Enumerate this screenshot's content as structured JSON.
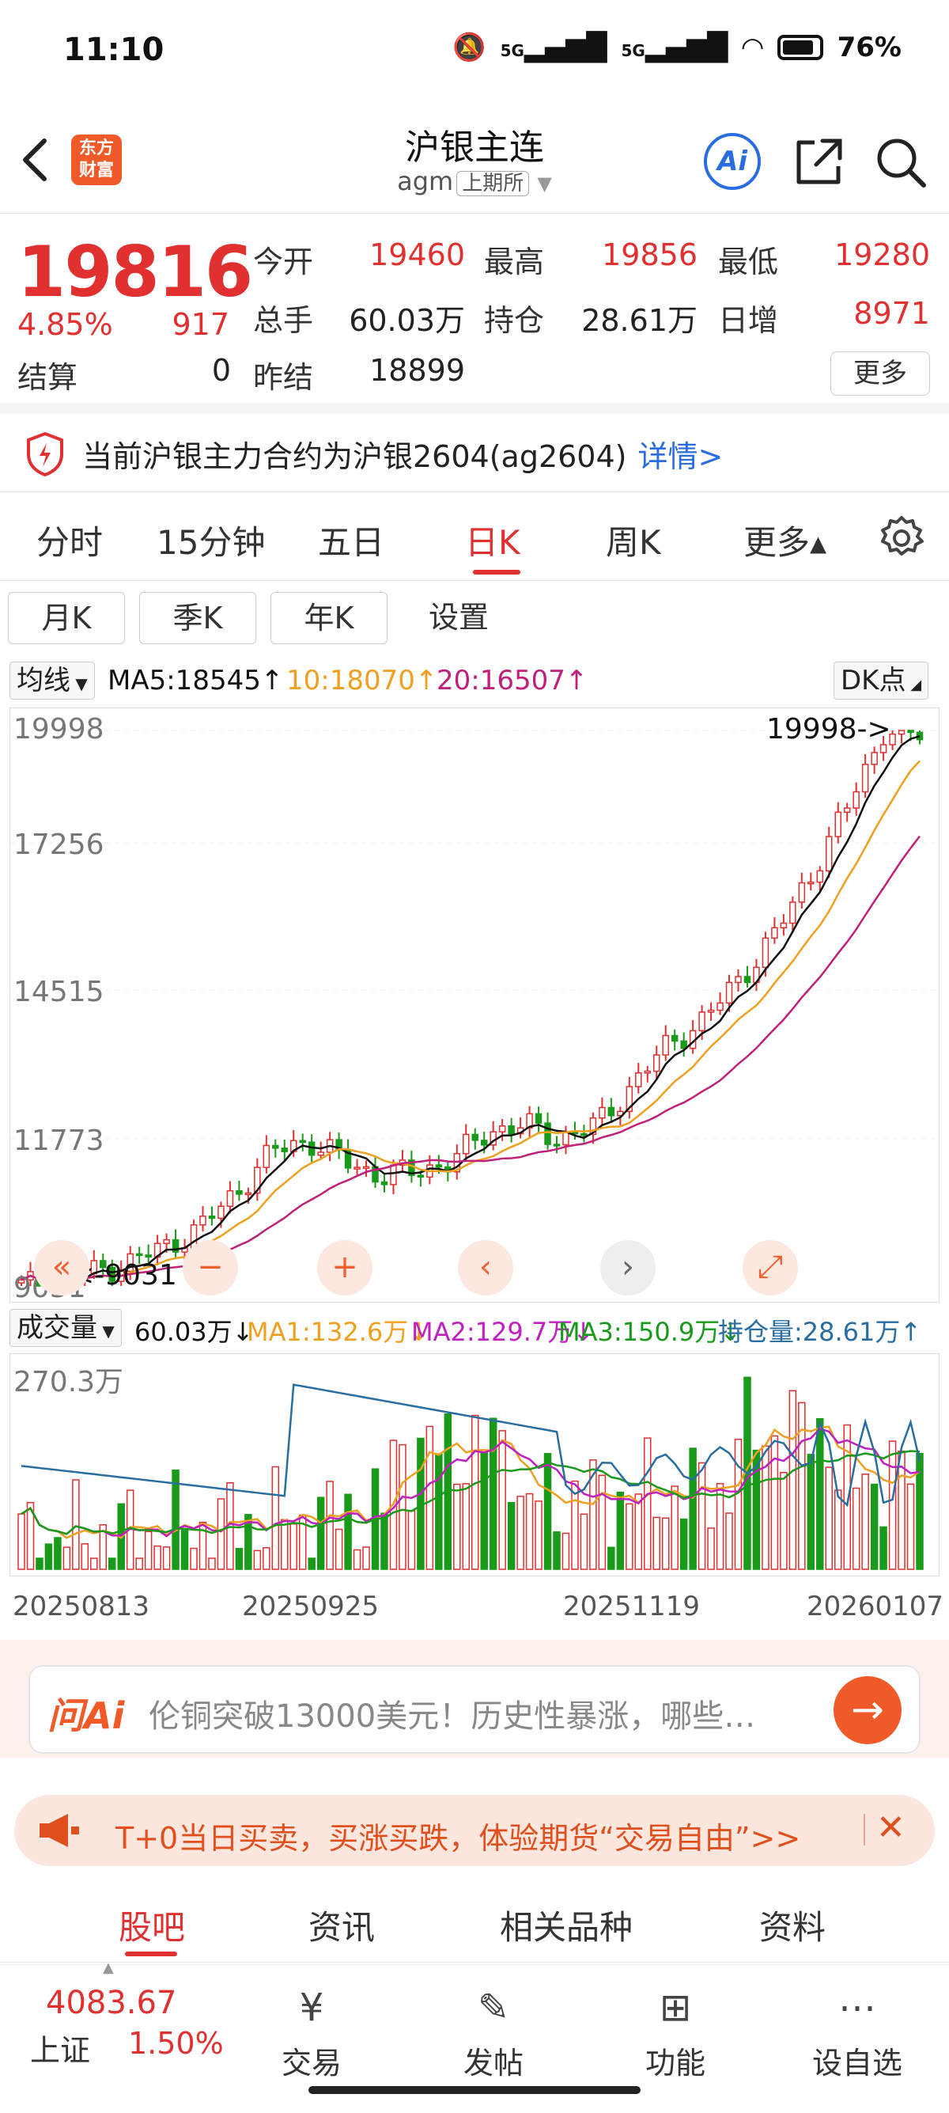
{
  "status_bar": {
    "time": "11:10",
    "network": "5G",
    "battery": "76%"
  },
  "header": {
    "logo_line1": "东方",
    "logo_line2": "财富",
    "title": "沪银主连",
    "code": "agm",
    "exchange": "上期所",
    "ai_label": "Ai"
  },
  "quote": {
    "price": "19816",
    "change_pct": "4.85%",
    "change": "917",
    "settle_label": "结算",
    "settle": "0",
    "fields": [
      {
        "label": "今开",
        "value": "19460",
        "color": "red"
      },
      {
        "label": "最高",
        "value": "19856",
        "color": "red"
      },
      {
        "label": "最低",
        "value": "19280",
        "color": "red"
      },
      {
        "label": "总手",
        "value": "60.03万",
        "color": "black"
      },
      {
        "label": "持仓",
        "value": "28.61万",
        "color": "black"
      },
      {
        "label": "日增",
        "value": "8971",
        "color": "red"
      },
      {
        "label": "昨结",
        "value": "18899",
        "color": "black"
      }
    ],
    "more_label": "更多"
  },
  "notice": {
    "text": "当前沪银主力合约为沪银2604(ag2604)",
    "link": "详情>"
  },
  "period_tabs": [
    {
      "label": "分时",
      "active": false
    },
    {
      "label": "15分钟",
      "active": false
    },
    {
      "label": "五日",
      "active": false
    },
    {
      "label": "日K",
      "active": true
    },
    {
      "label": "周K",
      "active": false
    },
    {
      "label": "更多▴",
      "active": false
    }
  ],
  "sub_periods": [
    "月K",
    "季K",
    "年K"
  ],
  "sub_settings": "设置",
  "ma_legend": {
    "selector": "均线",
    "ma5": "MA5:18545↑",
    "ma10": "10:18070↑",
    "ma20": "20:16507↑",
    "dk": "DK点",
    "colors": {
      "ma5": "#111111",
      "ma10": "#f0a020",
      "ma20": "#c0207a"
    }
  },
  "kline": {
    "y_labels": [
      "19998",
      "17256",
      "14515",
      "11773",
      "9031"
    ],
    "max_label": "19998->",
    "min_label": "<-9031",
    "ymin": 9031,
    "ymax": 19998
  },
  "volume": {
    "selector": "成交量",
    "vol": "60.03万↓",
    "ma1": "MA1:132.6万↓",
    "ma2": "MA2:129.7万↓",
    "ma3": "MA3:150.9万↓",
    "oi": "持仓量:28.61万↑",
    "y_label": "270.3万",
    "colors": {
      "ma1": "#f0a020",
      "ma2": "#c020c0",
      "ma3": "#1a9a1a",
      "oi": "#2a6da0"
    }
  },
  "x_labels": [
    "20250813",
    "20250925",
    "20251119",
    "20260107"
  ],
  "ai_search": {
    "logo": "问Ai",
    "text": "伦铜突破13000美元！历史性暴涨，哪些…"
  },
  "promo": {
    "text": "T+0当日买卖，买涨买跌，体验期货“交易自由”>>"
  },
  "content_tabs": [
    {
      "label": "股吧",
      "active": true
    },
    {
      "label": "资讯",
      "active": false
    },
    {
      "label": "相关品种",
      "active": false
    },
    {
      "label": "资料",
      "active": false
    }
  ],
  "bottom_nav": {
    "index_value": "4083.67",
    "index_name": "上证",
    "index_change": "1.50%",
    "items": [
      "交易",
      "发帖",
      "功能",
      "设自选"
    ]
  },
  "chart_data": {
    "type": "candlestick",
    "x_range": [
      "20250813",
      "20260107"
    ],
    "ylim": [
      9031,
      19998
    ],
    "price_trend": [
      9031,
      9150,
      9300,
      9500,
      9800,
      10200,
      10900,
      11700,
      11900,
      11500,
      11200,
      11300,
      11500,
      12100,
      12200,
      11950,
      12200,
      13000,
      13800,
      14300,
      15100,
      16000,
      17200,
      18500,
      19998,
      19816
    ],
    "series": [
      {
        "name": "MA5",
        "value": 18545
      },
      {
        "name": "10",
        "value": 18070
      },
      {
        "name": "20",
        "value": 16507
      }
    ]
  }
}
